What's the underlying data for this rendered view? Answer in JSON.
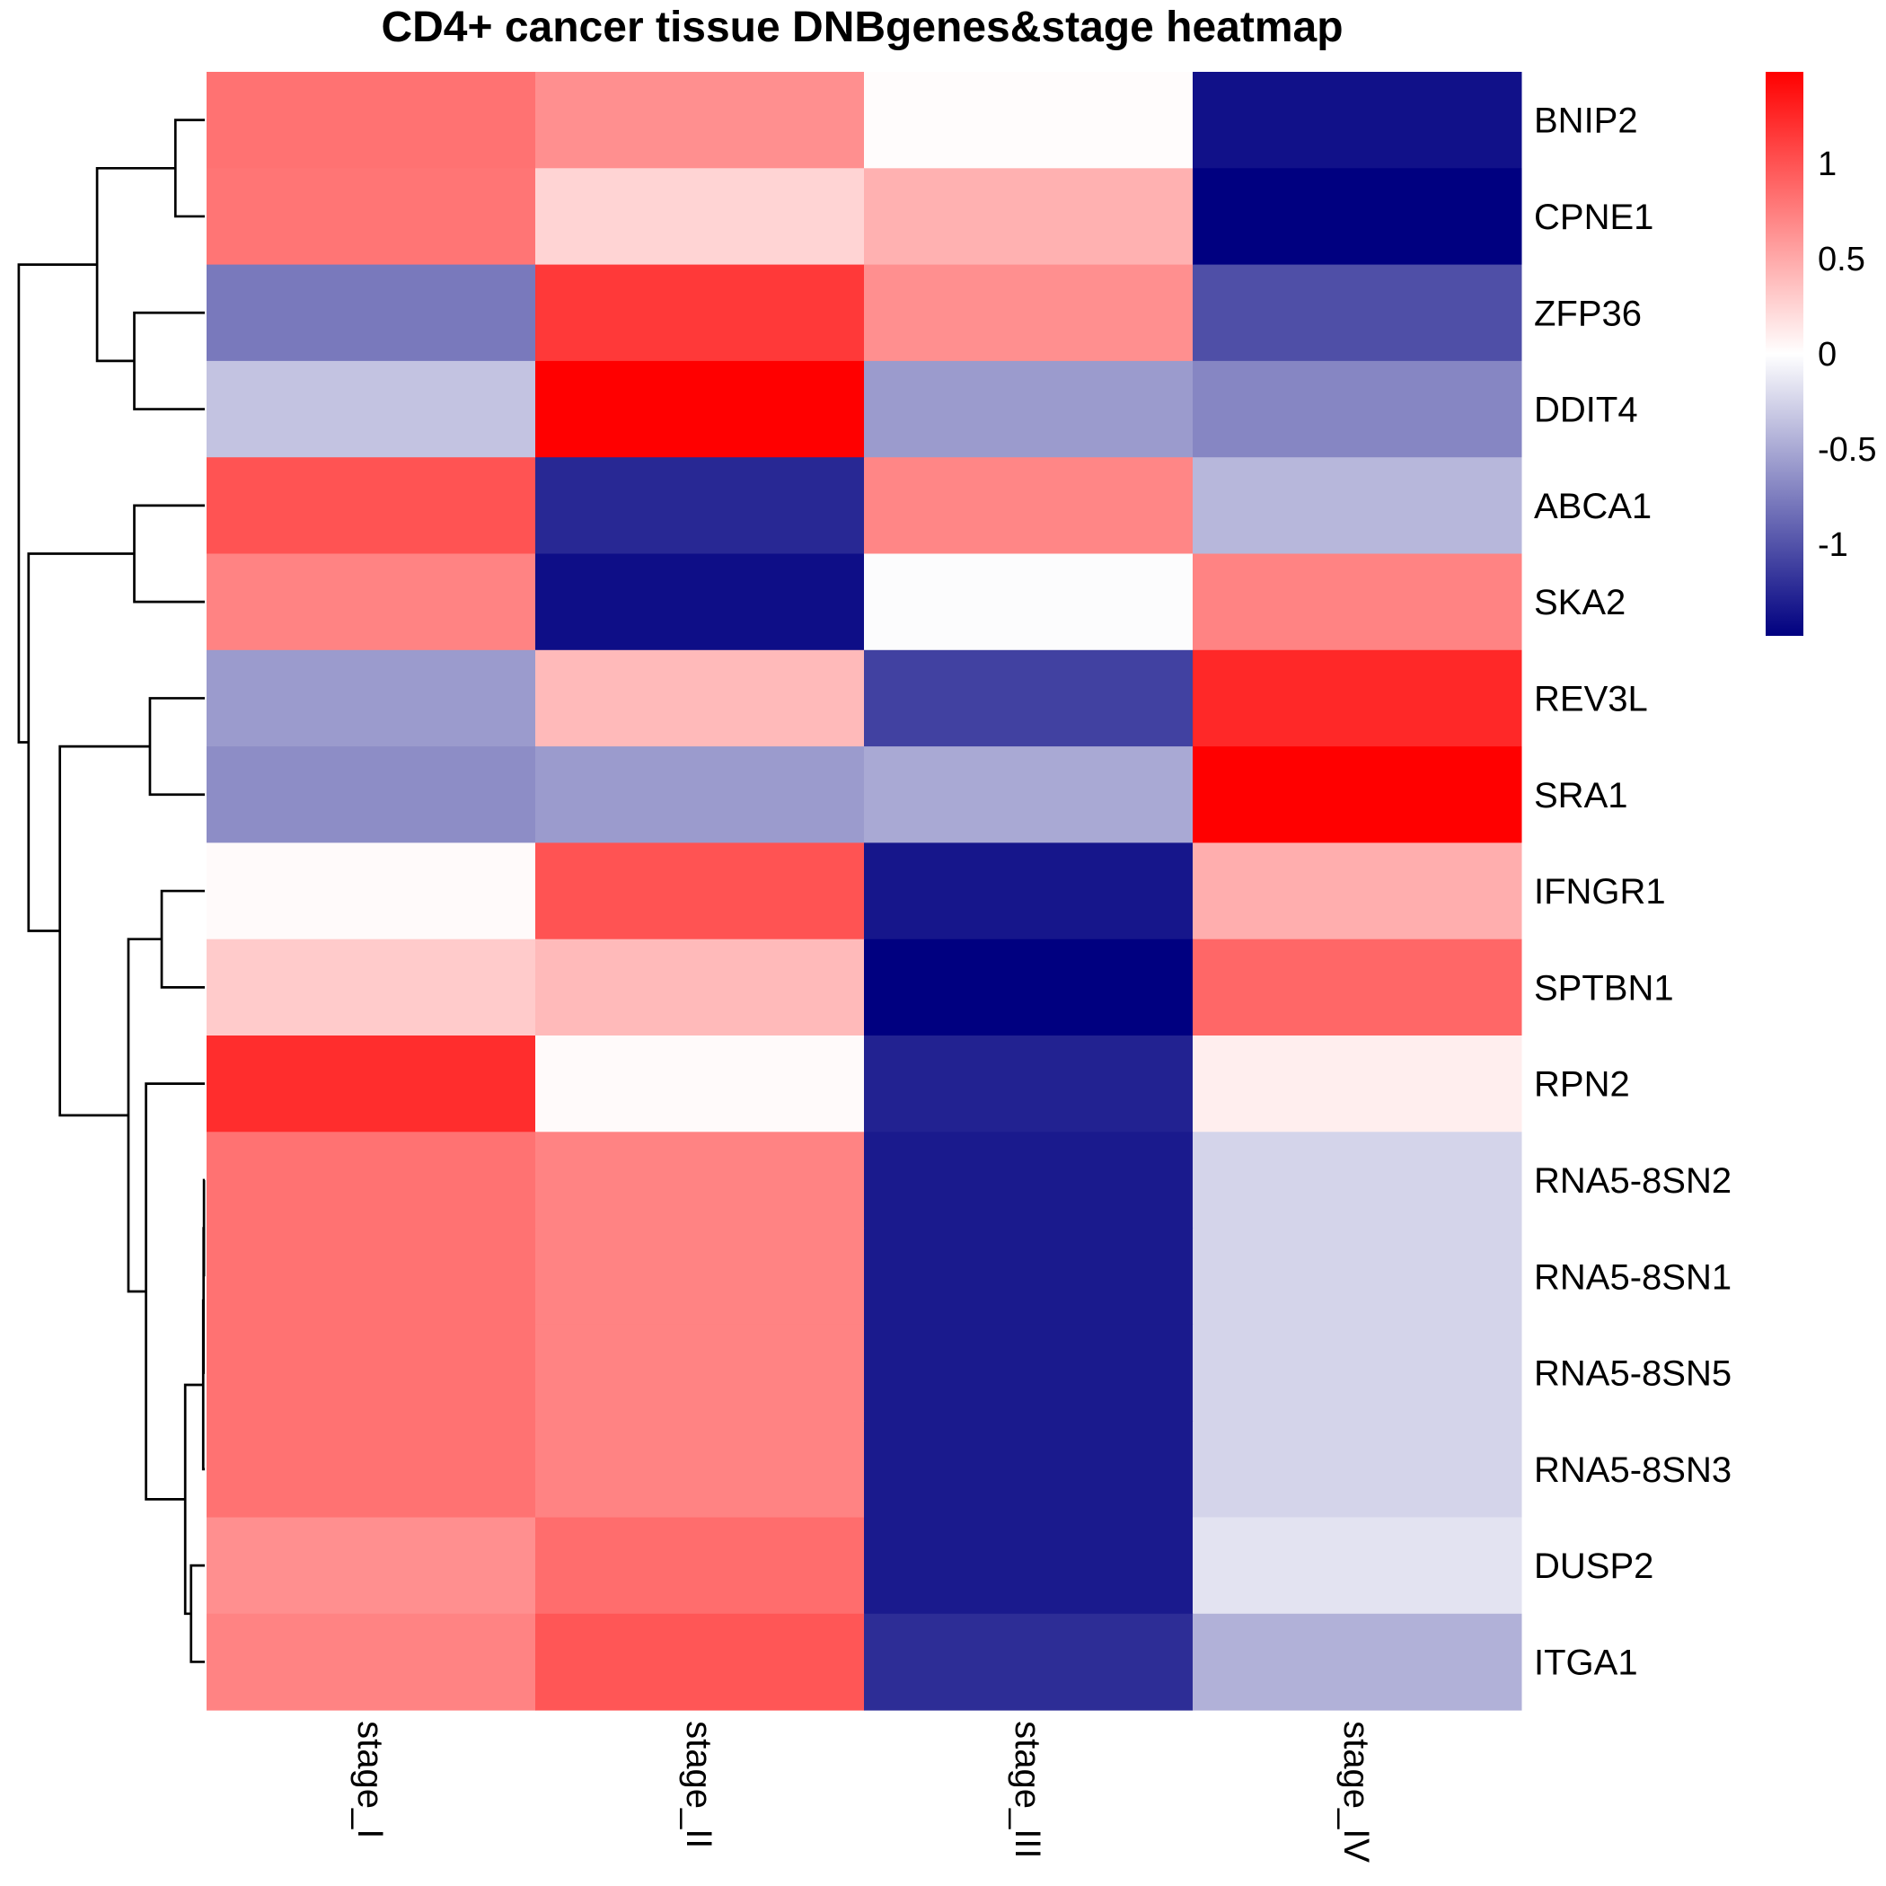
{
  "chart_data": {
    "type": "heatmap",
    "title": "CD4+ cancer tissue DNBgenes&stage heatmap",
    "columns": [
      "stage_I",
      "stage_II",
      "stage_III",
      "stage_IV"
    ],
    "rows": [
      "BNIP2",
      "CPNE1",
      "ZFP36",
      "DDIT4",
      "ABCA1",
      "SKA2",
      "REV3L",
      "SRA1",
      "IFNGR1",
      "SPTBN1",
      "RPN2",
      "RNA5-8SN2",
      "RNA5-8SN1",
      "RNA5-8SN5",
      "RNA5-8SN3",
      "DUSP2",
      "ITGA1"
    ],
    "values": [
      [
        0.82,
        0.65,
        0.02,
        -1.38
      ],
      [
        0.8,
        0.25,
        0.45,
        -1.48
      ],
      [
        -0.78,
        1.15,
        0.65,
        -1.02
      ],
      [
        -0.35,
        1.48,
        -0.58,
        -0.7
      ],
      [
        1.0,
        -1.25,
        0.7,
        -0.42
      ],
      [
        0.72,
        -1.4,
        -0.02,
        0.72
      ],
      [
        -0.58,
        0.4,
        -1.1,
        1.25
      ],
      [
        -0.66,
        -0.58,
        -0.5,
        1.48
      ],
      [
        0.03,
        1.0,
        -1.35,
        0.47
      ],
      [
        0.3,
        0.4,
        -1.48,
        0.88
      ],
      [
        1.22,
        0.03,
        -1.28,
        0.1
      ],
      [
        0.82,
        0.72,
        -1.33,
        -0.25
      ],
      [
        0.82,
        0.72,
        -1.33,
        -0.25
      ],
      [
        0.82,
        0.72,
        -1.33,
        -0.25
      ],
      [
        0.82,
        0.72,
        -1.33,
        -0.25
      ],
      [
        0.65,
        0.85,
        -1.33,
        -0.16
      ],
      [
        0.72,
        0.98,
        -1.22,
        -0.45
      ]
    ],
    "color_scale": {
      "min": -1.48,
      "max": 1.48,
      "low_color": "#000080",
      "mid_color": "#ffffff",
      "high_color": "#ff0000"
    },
    "legend": {
      "ticks": [
        1,
        0.5,
        0,
        -0.5,
        -1
      ],
      "tick_labels": [
        "1",
        "0.5",
        "0",
        "-0.5",
        "-1"
      ],
      "placement": "top-right"
    },
    "row_dendrogram": [
      {
        "a": "BNIP2",
        "b": "CPNE1",
        "h": 0.15
      },
      {
        "a": "ZFP36",
        "b": "DDIT4",
        "h": 0.36
      },
      {
        "a": 0,
        "b": 1,
        "h": 0.55
      },
      {
        "a": "ABCA1",
        "b": "SKA2",
        "h": 0.36
      },
      {
        "a": "REV3L",
        "b": "SRA1",
        "h": 0.28
      },
      {
        "a": "IFNGR1",
        "b": "SPTBN1",
        "h": 0.22
      },
      {
        "a": "RNA5-8SN2",
        "b": "RNA5-8SN1",
        "h": 0.004
      },
      {
        "a": 6,
        "b": "RNA5-8SN5",
        "h": 0.006
      },
      {
        "a": 7,
        "b": "RNA5-8SN3",
        "h": 0.008
      },
      {
        "a": "DUSP2",
        "b": "ITGA1",
        "h": 0.07
      },
      {
        "a": 8,
        "b": 9,
        "h": 0.1
      },
      {
        "a": "RPN2",
        "b": 10,
        "h": 0.3
      },
      {
        "a": 5,
        "b": 11,
        "h": 0.39
      },
      {
        "a": 4,
        "b": 12,
        "h": 0.74
      },
      {
        "a": 3,
        "b": 13,
        "h": 0.9
      },
      {
        "a": 2,
        "b": 14,
        "h": 0.95
      }
    ]
  }
}
